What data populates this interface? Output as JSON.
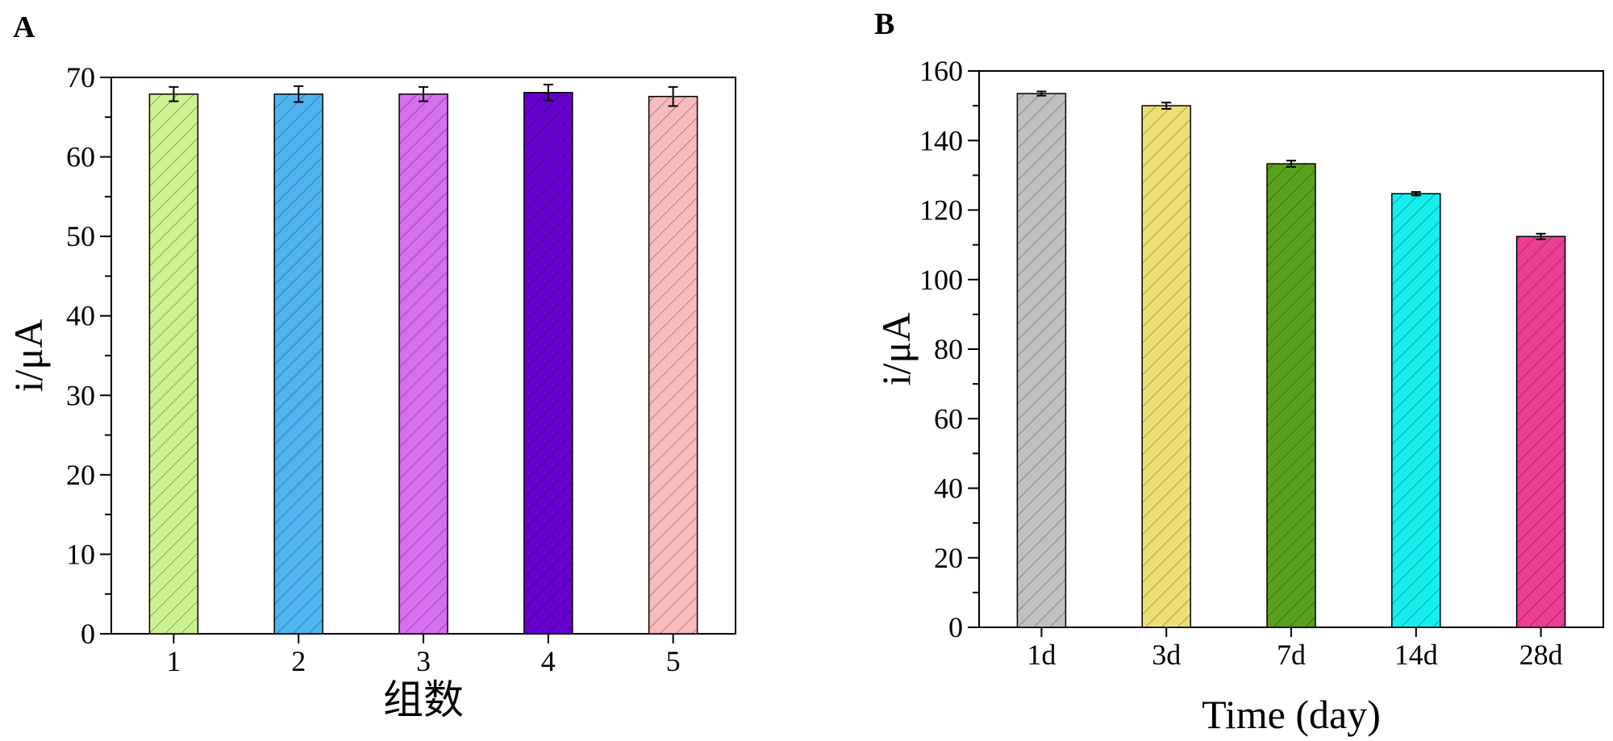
{
  "chart_data": [
    {
      "panel": "A",
      "type": "bar",
      "categories": [
        "1",
        "2",
        "3",
        "4",
        "5"
      ],
      "values": [
        67.9,
        67.9,
        67.9,
        68.1,
        67.6
      ],
      "errors": [
        0.9,
        1.0,
        0.9,
        1.0,
        1.2
      ],
      "colors": [
        "#cdf291",
        "#4fb4f0",
        "#d76ff0",
        "#6600cc",
        "#f8bcbc"
      ],
      "xlabel": "组数",
      "ylabel": "i/μA",
      "ylim": [
        0,
        70
      ],
      "yticks": [
        0,
        10,
        20,
        30,
        40,
        50,
        60,
        70
      ],
      "hatch": "diagonal",
      "grid": false
    },
    {
      "panel": "B",
      "type": "bar",
      "categories": [
        "1d",
        "3d",
        "7d",
        "14d",
        "28d"
      ],
      "values": [
        153.5,
        150.0,
        133.3,
        124.7,
        112.4
      ],
      "errors": [
        0.6,
        0.9,
        0.9,
        0.5,
        0.8
      ],
      "colors": [
        "#c0c0c0",
        "#ede073",
        "#58a11c",
        "#16eeee",
        "#ec3e93"
      ],
      "xlabel": "Time (day)",
      "ylabel": "i/μA",
      "ylim": [
        0,
        160
      ],
      "yticks": [
        0,
        20,
        40,
        60,
        80,
        100,
        120,
        140,
        160
      ],
      "hatch": "diagonal",
      "grid": false
    }
  ]
}
